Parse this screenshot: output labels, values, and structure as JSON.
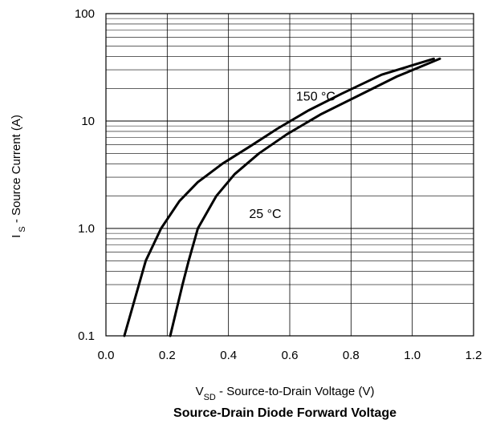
{
  "chart_data": {
    "type": "line",
    "title": "Source-Drain Diode Forward Voltage",
    "xlabel": {
      "main": "V",
      "sub": "SD",
      "rest": " - Source-to-Drain Voltage (V)"
    },
    "ylabel": {
      "main": "I",
      "sub": "S",
      "rest": " - Source Current (A)"
    },
    "xlim": [
      0.0,
      1.2
    ],
    "ylim": [
      0.1,
      100
    ],
    "yscale": "log",
    "grid": true,
    "x_ticks": [
      "0.0",
      "0.2",
      "0.4",
      "0.6",
      "0.8",
      "1.0",
      "1.2"
    ],
    "y_ticks": [
      {
        "value": 0.1,
        "label": "0.1"
      },
      {
        "value": 1.0,
        "label": "1.0"
      },
      {
        "value": 10,
        "label": "10"
      },
      {
        "value": 100,
        "label": "100"
      }
    ],
    "series": [
      {
        "name": "150 °C",
        "x": [
          0.06,
          0.13,
          0.18,
          0.24,
          0.3,
          0.38,
          0.47,
          0.56,
          0.66,
          0.77,
          0.9,
          1.07
        ],
        "y": [
          0.1,
          0.5,
          1.0,
          1.8,
          2.7,
          4.0,
          5.8,
          8.5,
          12.5,
          18.0,
          27.0,
          38.0
        ]
      },
      {
        "name": "25 °C",
        "x": [
          0.21,
          0.25,
          0.27,
          0.3,
          0.36,
          0.42,
          0.5,
          0.59,
          0.7,
          0.82,
          0.95,
          1.09
        ],
        "y": [
          0.1,
          0.3,
          0.5,
          1.0,
          2.0,
          3.2,
          5.0,
          7.5,
          11.5,
          17.0,
          26.0,
          38.0
        ]
      }
    ],
    "annotations": [
      {
        "text": "150 °C",
        "x": 0.685,
        "y": 15.5
      },
      {
        "text": "25 °C",
        "x": 0.52,
        "y": 1.25
      }
    ]
  }
}
